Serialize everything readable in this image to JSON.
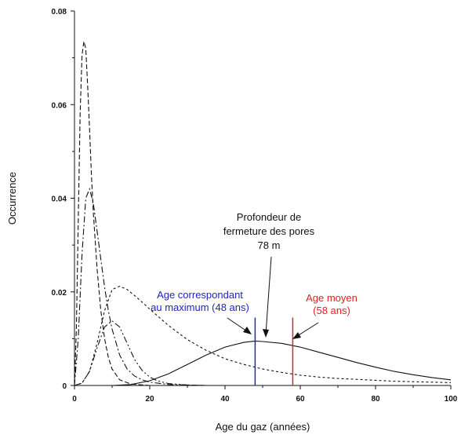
{
  "chart_data": {
    "type": "line",
    "title": "",
    "xlabel": "Age du gaz (années)",
    "ylabel": "Occurrence",
    "xlim": [
      0,
      100
    ],
    "ylim": [
      0,
      0.08
    ],
    "x_ticks": [
      0,
      20,
      40,
      60,
      80,
      100
    ],
    "y_ticks": [
      0,
      0.02,
      0.04,
      0.06,
      0.08
    ],
    "x_tick_labels": [
      "0",
      "20",
      "40",
      "60",
      "80",
      "100"
    ],
    "y_tick_labels": [
      "0",
      "0.02",
      "0.04",
      "0.06",
      "0.08"
    ],
    "grid": false,
    "legend": "none",
    "series": [
      {
        "style": "dashed",
        "x": [
          0,
          0.5,
          1,
          1.5,
          2,
          2.5,
          3,
          3.5,
          4,
          4.5,
          5,
          6,
          7,
          8,
          9,
          10,
          12,
          15,
          20
        ],
        "y": [
          0,
          0.012,
          0.035,
          0.058,
          0.0705,
          0.0735,
          0.072,
          0.064,
          0.055,
          0.045,
          0.037,
          0.025,
          0.016,
          0.01,
          0.006,
          0.0035,
          0.0012,
          0.0003,
          0
        ]
      },
      {
        "style": "dash-dot",
        "x": [
          0,
          1,
          2,
          3,
          4,
          5,
          6,
          7,
          8,
          9,
          10,
          12,
          14,
          16,
          18,
          20,
          25,
          30,
          35,
          40
        ],
        "y": [
          0,
          0.01,
          0.028,
          0.04,
          0.042,
          0.039,
          0.033,
          0.027,
          0.021,
          0.016,
          0.012,
          0.0065,
          0.0035,
          0.002,
          0.0012,
          0.0007,
          0.0002,
          0.0001,
          0,
          0
        ]
      },
      {
        "style": "dash-dot-dot",
        "x": [
          0,
          2,
          4,
          6,
          8,
          10,
          12,
          14,
          16,
          18,
          20,
          22,
          25,
          30,
          35,
          40
        ],
        "y": [
          0,
          0.0005,
          0.003,
          0.008,
          0.0125,
          0.0138,
          0.0125,
          0.009,
          0.0055,
          0.0032,
          0.0018,
          0.001,
          0.0004,
          0.0001,
          0,
          0
        ]
      },
      {
        "style": "short-dash",
        "x": [
          0,
          2,
          4,
          6,
          8,
          10,
          12,
          14,
          16,
          18,
          20,
          25,
          30,
          35,
          40,
          45,
          50,
          55,
          60,
          65,
          70,
          75,
          80,
          85,
          90,
          95,
          100
        ],
        "y": [
          0,
          0.0005,
          0.003,
          0.009,
          0.016,
          0.0205,
          0.0212,
          0.0205,
          0.0192,
          0.0178,
          0.0163,
          0.0128,
          0.0098,
          0.0075,
          0.0057,
          0.0045,
          0.0035,
          0.0028,
          0.0022,
          0.0018,
          0.0015,
          0.0013,
          0.0011,
          0.0009,
          0.0008,
          0.0007,
          0.0006
        ]
      },
      {
        "style": "solid",
        "x": [
          10,
          15,
          20,
          25,
          30,
          35,
          40,
          45,
          48,
          50,
          55,
          60,
          65,
          70,
          75,
          80,
          85,
          90,
          95,
          100
        ],
        "y": [
          0,
          0.0002,
          0.001,
          0.0025,
          0.0045,
          0.0065,
          0.0082,
          0.0092,
          0.0095,
          0.0094,
          0.009,
          0.0082,
          0.0071,
          0.006,
          0.0049,
          0.0039,
          0.003,
          0.0023,
          0.0017,
          0.0012
        ]
      }
    ],
    "vertical_lines": [
      {
        "x": 48,
        "y_top": 0.0145,
        "color": "#2222cc"
      },
      {
        "x": 58,
        "y_top": 0.0145,
        "color": "#dd2222"
      }
    ],
    "annotations": [
      {
        "id": "closure",
        "lines": [
          "Profondeur de",
          "fermeture des pores",
          "78 m"
        ],
        "color": "#111111"
      },
      {
        "id": "max",
        "lines": [
          "Age correspondant",
          "au maximum (48 ans)"
        ],
        "color": "#2222cc"
      },
      {
        "id": "mean",
        "lines": [
          "Age moyen",
          "(58 ans)"
        ],
        "color": "#dd2222"
      }
    ]
  }
}
